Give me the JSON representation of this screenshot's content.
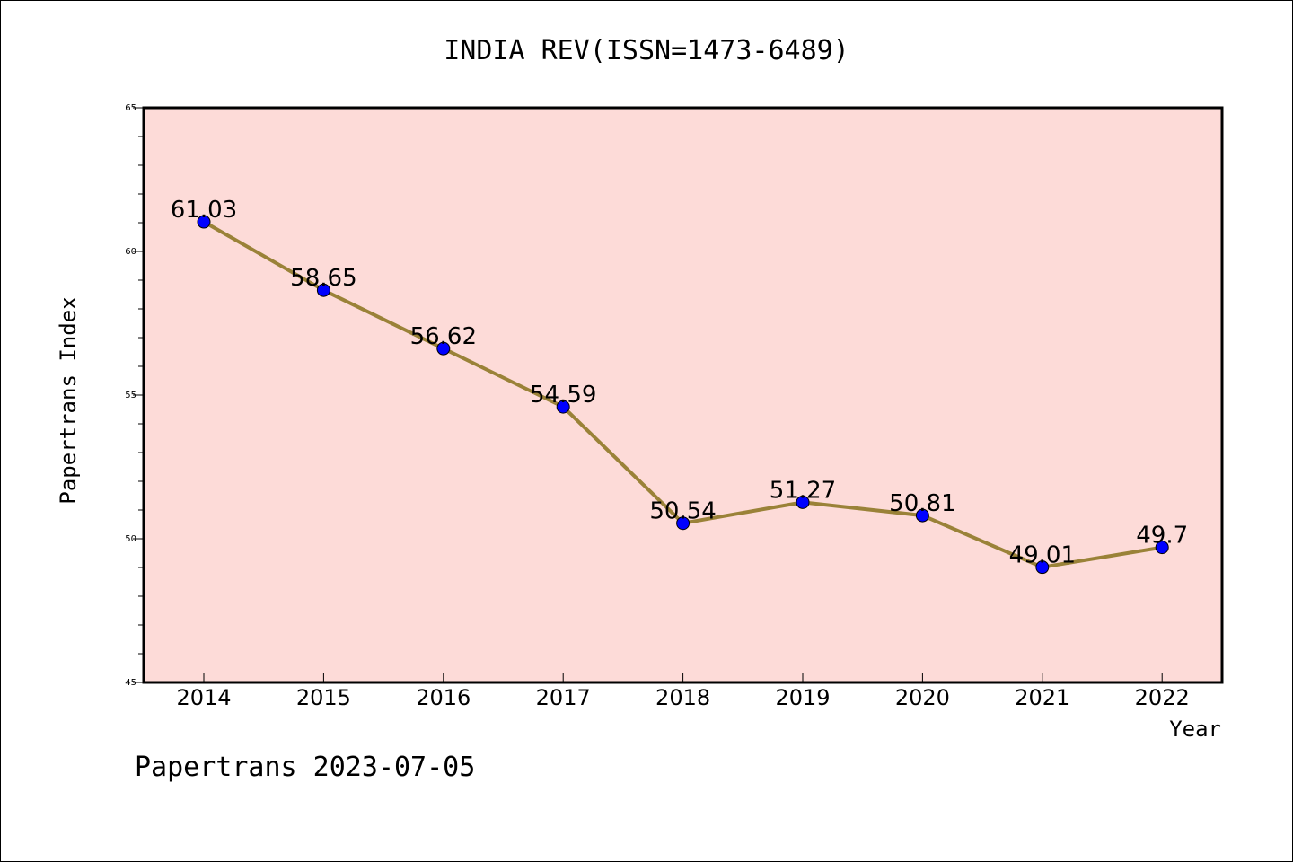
{
  "chart_data": {
    "type": "line",
    "title": "INDIA REV(ISSN=1473-6489)",
    "xlabel": "Year",
    "ylabel": "Papertrans Index",
    "categories": [
      "2014",
      "2015",
      "2016",
      "2017",
      "2018",
      "2019",
      "2020",
      "2021",
      "2022"
    ],
    "series": [
      {
        "values": [
          61.03,
          58.65,
          56.62,
          54.59,
          50.54,
          51.27,
          50.81,
          49.01,
          49.7
        ],
        "labels": [
          "61.03",
          "58.65",
          "56.62",
          "54.59",
          "50.54",
          "51.27",
          "50.81",
          "49.01",
          "49.7"
        ]
      }
    ],
    "ylim": [
      45,
      65
    ],
    "yticks": [
      "45",
      "50",
      "55",
      "60",
      "65"
    ],
    "grid": false,
    "legend": "none",
    "colors": {
      "plot_background": "#fddbd8",
      "line": "#9a8238",
      "marker": "#0000ff"
    }
  },
  "footer": "Papertrans 2023-07-05"
}
